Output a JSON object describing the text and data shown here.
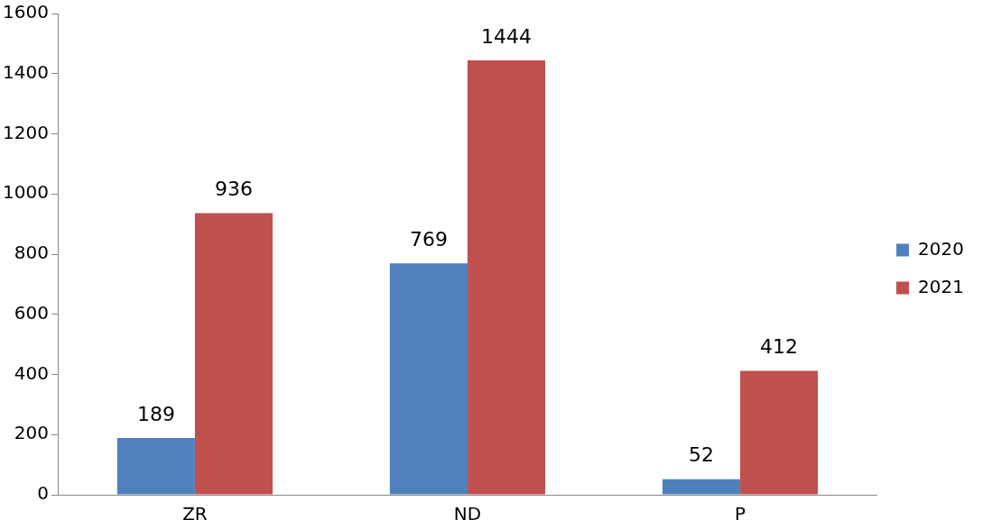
{
  "chart_data": {
    "type": "bar",
    "categories": [
      "ZR",
      "ND",
      "P"
    ],
    "series": [
      {
        "name": "2020",
        "color": "#4f81bd",
        "values": [
          189,
          769,
          52
        ]
      },
      {
        "name": "2021",
        "color": "#c0504d",
        "values": [
          936,
          1444,
          412
        ]
      }
    ],
    "ylim": [
      0,
      1600
    ],
    "yticks": [
      0,
      200,
      400,
      600,
      800,
      1000,
      1200,
      1400,
      1600
    ],
    "grid": false,
    "legend": "right",
    "data_labels": true
  }
}
